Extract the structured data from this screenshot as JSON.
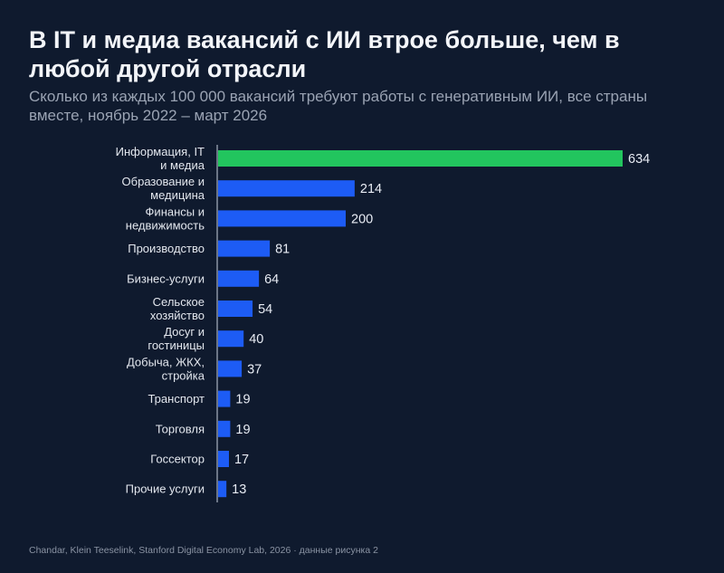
{
  "title": "В IT и медиа вакансий с ИИ втрое больше, чем в любой другой отрасли",
  "subtitle": "Сколько из каждых 100 000 вакансий требуют работы с генеративным ИИ, все страны вместе, ноябрь 2022 – март 2026",
  "source": "Chandar, Klein Teeselink, Stanford Digital Economy Lab, 2026 · данные рисунка 2",
  "colors": {
    "highlight": "#22c55e",
    "bar": "#1d5cf5",
    "axis": "#8a93a3"
  },
  "chart_data": {
    "type": "bar",
    "orientation": "horizontal",
    "categories": [
      [
        "Информация, IT",
        "и медиа"
      ],
      [
        "Образование и",
        "медицина"
      ],
      [
        "Финансы и",
        "недвижимость"
      ],
      [
        "Производство"
      ],
      [
        "Бизнес-услуги"
      ],
      [
        "Сельское",
        "хозяйство"
      ],
      [
        "Досуг и",
        "гостиницы"
      ],
      [
        "Добыча, ЖКХ,",
        "стройка"
      ],
      [
        "Транспорт"
      ],
      [
        "Торговля"
      ],
      [
        "Госсектор"
      ],
      [
        "Прочие услуги"
      ]
    ],
    "values": [
      634,
      214,
      200,
      81,
      64,
      54,
      40,
      37,
      19,
      19,
      17,
      13
    ],
    "highlight_index": 0,
    "xlim": [
      0,
      634
    ],
    "grid": false,
    "data_labels": true
  }
}
